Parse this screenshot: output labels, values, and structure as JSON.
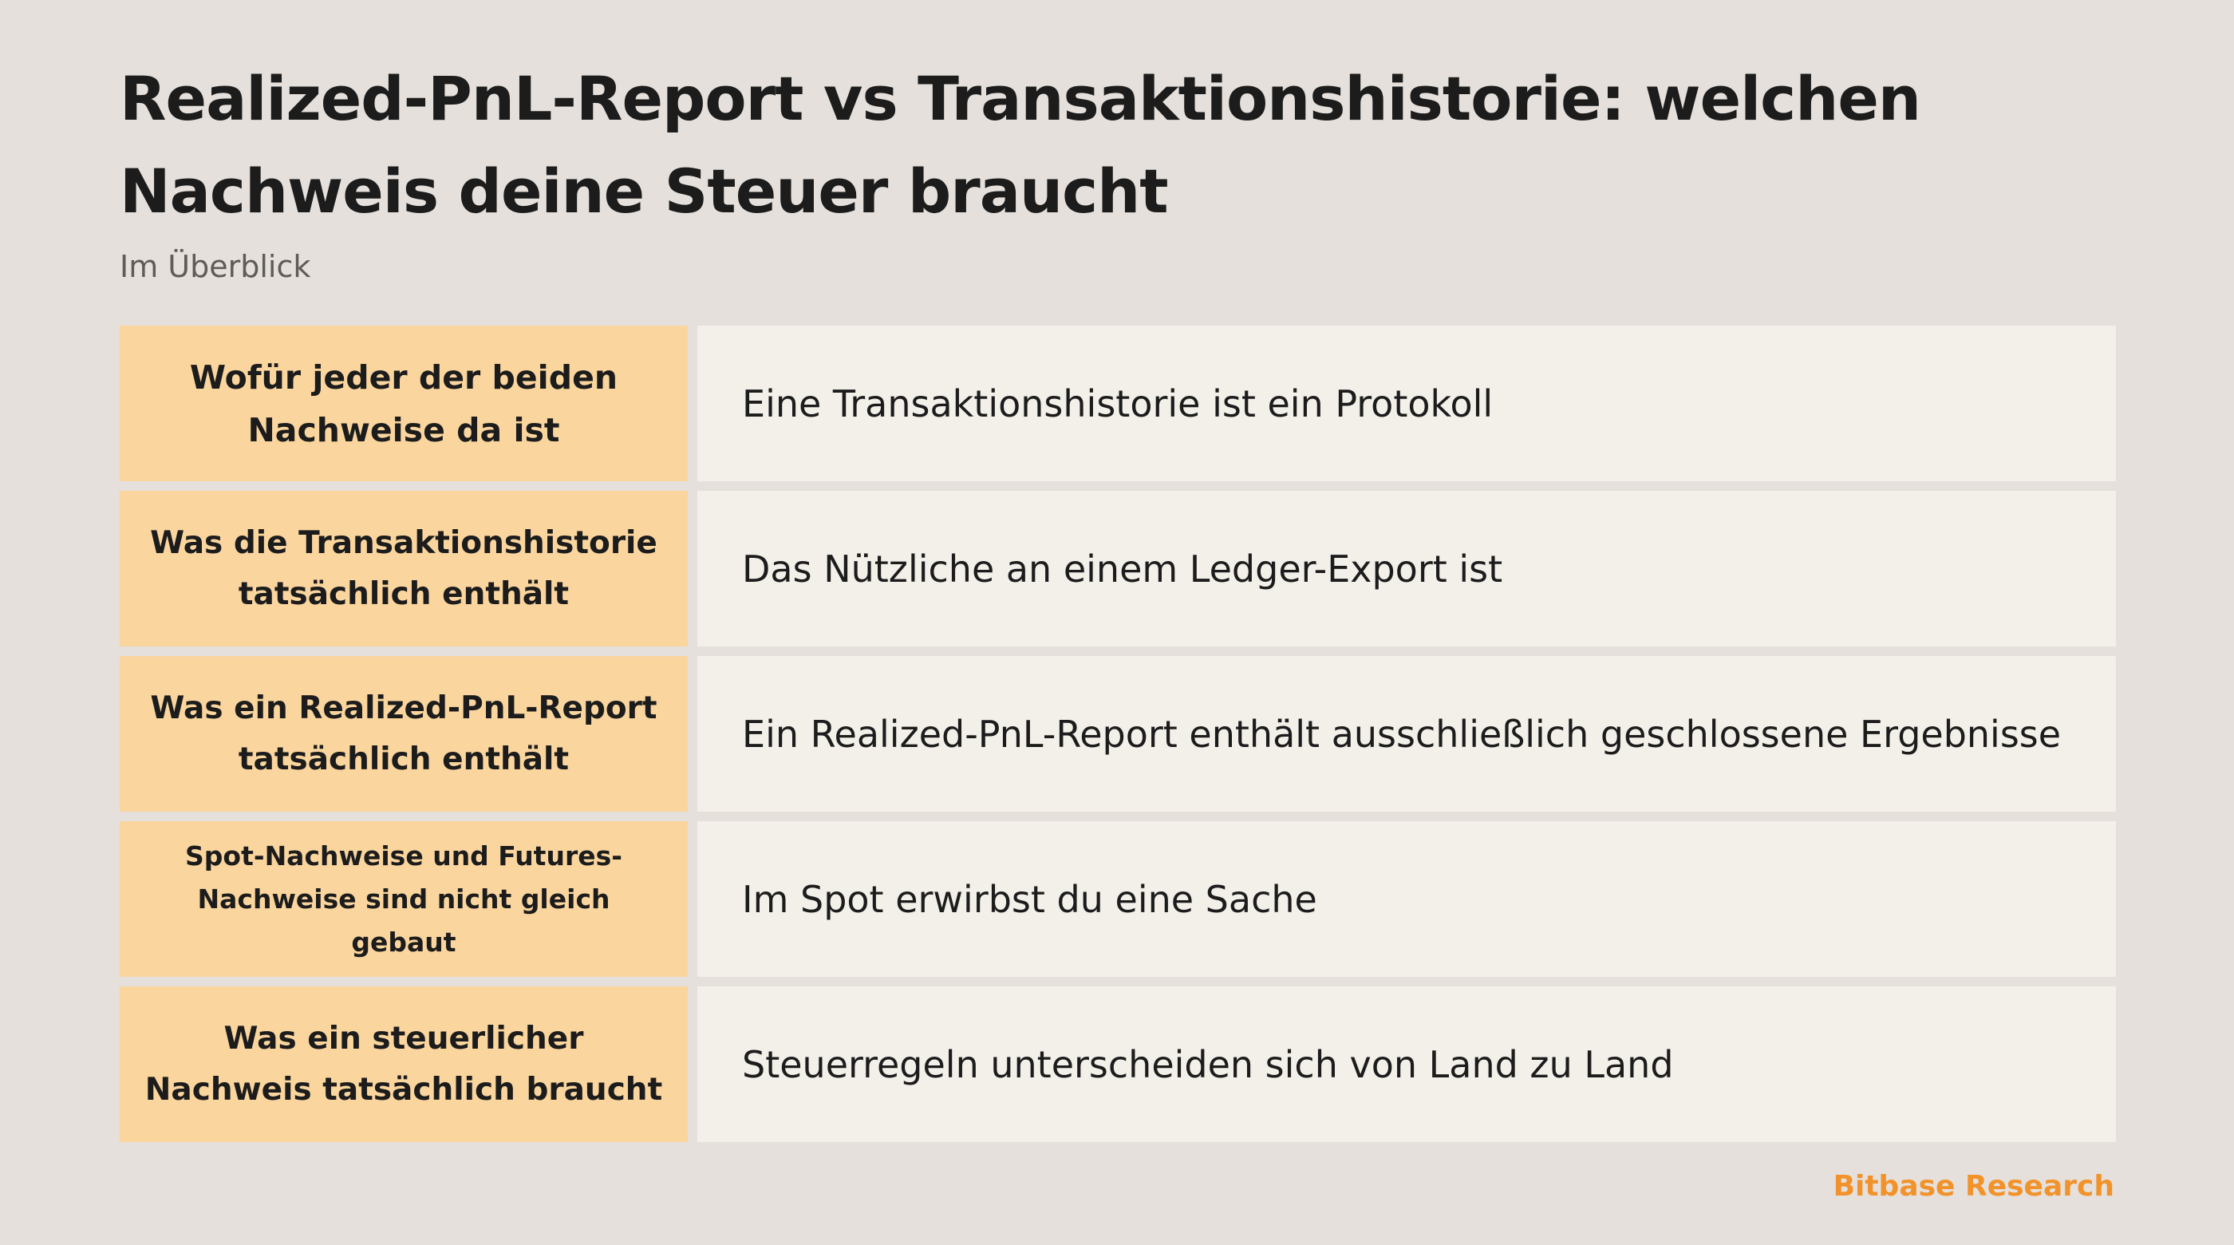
{
  "header": {
    "title": "Realized-PnL-Report vs Transaktionshistorie: welchen Nachweis deine Steuer braucht",
    "subtitle": "Im Überblick"
  },
  "rows": [
    {
      "label": "Wofür jeder der beiden Nachweise da ist",
      "value": "Eine Transaktionshistorie ist ein Protokoll"
    },
    {
      "label": "Was die Transaktionshistorie tatsächlich enthält",
      "value": "Das Nützliche an einem Ledger-Export ist"
    },
    {
      "label": "Was ein Realized-PnL-Report tatsächlich enthält",
      "value": "Ein Realized-PnL-Report enthält ausschließlich geschlossene Ergebnisse"
    },
    {
      "label": "Spot-Nachweise und Futures-Nachweise sind nicht gleich gebaut",
      "value": "Im Spot erwirbst du eine Sache"
    },
    {
      "label": "Was ein steuerlicher Nachweis tatsächlich braucht",
      "value": "Steuerregeln unterscheiden sich von Land zu Land"
    }
  ],
  "footer": {
    "brand": "Bitbase Research"
  },
  "colors": {
    "background": "#e5e0db",
    "label_cell": "#fad59e",
    "value_cell": "#f3f0ea",
    "brand": "#f2922a"
  }
}
